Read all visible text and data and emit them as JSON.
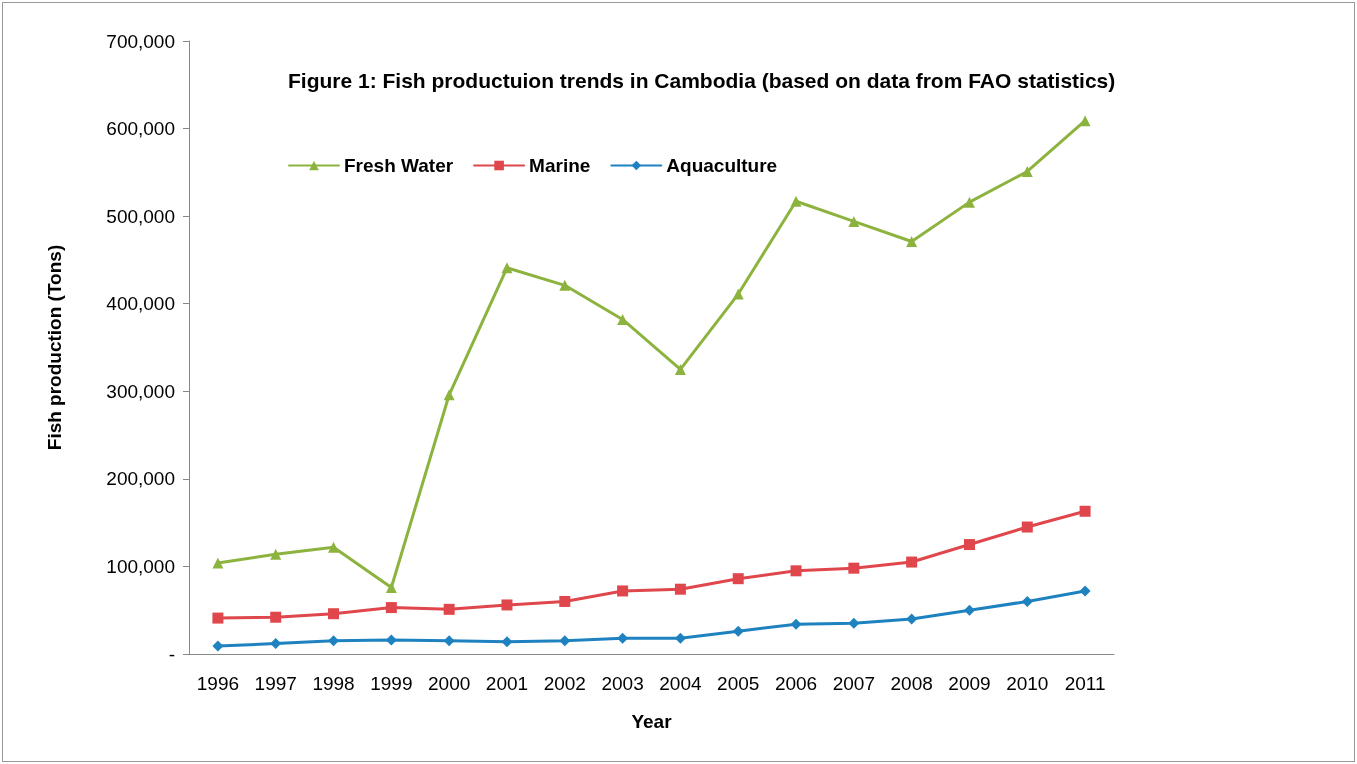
{
  "chart_data": {
    "type": "line",
    "title": "Figure 1: Fish productuion trends in Cambodia (based on data from FAO statistics)",
    "xlabel": "Year",
    "ylabel": "Fish production (Tons)",
    "categories": [
      "1996",
      "1997",
      "1998",
      "1999",
      "2000",
      "2001",
      "2002",
      "2003",
      "2004",
      "2005",
      "2006",
      "2007",
      "2008",
      "2009",
      "2010",
      "2011"
    ],
    "series": [
      {
        "name": "Fresh Water",
        "color": "#8db33f",
        "marker": "triangle",
        "values": [
          104000,
          114000,
          122000,
          76000,
          296000,
          441000,
          421000,
          382000,
          325000,
          411000,
          517000,
          494000,
          471000,
          516000,
          551000,
          609000
        ]
      },
      {
        "name": "Marine",
        "color": "#e0474c",
        "marker": "square",
        "values": [
          41000,
          42000,
          46000,
          53000,
          51000,
          56000,
          60000,
          72000,
          74000,
          86000,
          95000,
          98000,
          105000,
          125000,
          145000,
          163000
        ]
      },
      {
        "name": "Aquaculture",
        "color": "#1f82c0",
        "marker": "diamond",
        "values": [
          9000,
          12000,
          15000,
          16000,
          15000,
          14000,
          15000,
          18000,
          18000,
          26000,
          34000,
          35000,
          40000,
          50000,
          60000,
          72000
        ]
      }
    ],
    "ylim": [
      0,
      700000
    ],
    "yticks": [
      {
        "value": 0,
        "label": "-"
      },
      {
        "value": 100000,
        "label": "100,000"
      },
      {
        "value": 200000,
        "label": "200,000"
      },
      {
        "value": 300000,
        "label": "300,000"
      },
      {
        "value": 400000,
        "label": "400,000"
      },
      {
        "value": 500000,
        "label": "500,000"
      },
      {
        "value": 600000,
        "label": "600,000"
      },
      {
        "value": 700000,
        "label": "700,000"
      }
    ],
    "grid": false,
    "legend": "top left",
    "line_style": "solid"
  }
}
